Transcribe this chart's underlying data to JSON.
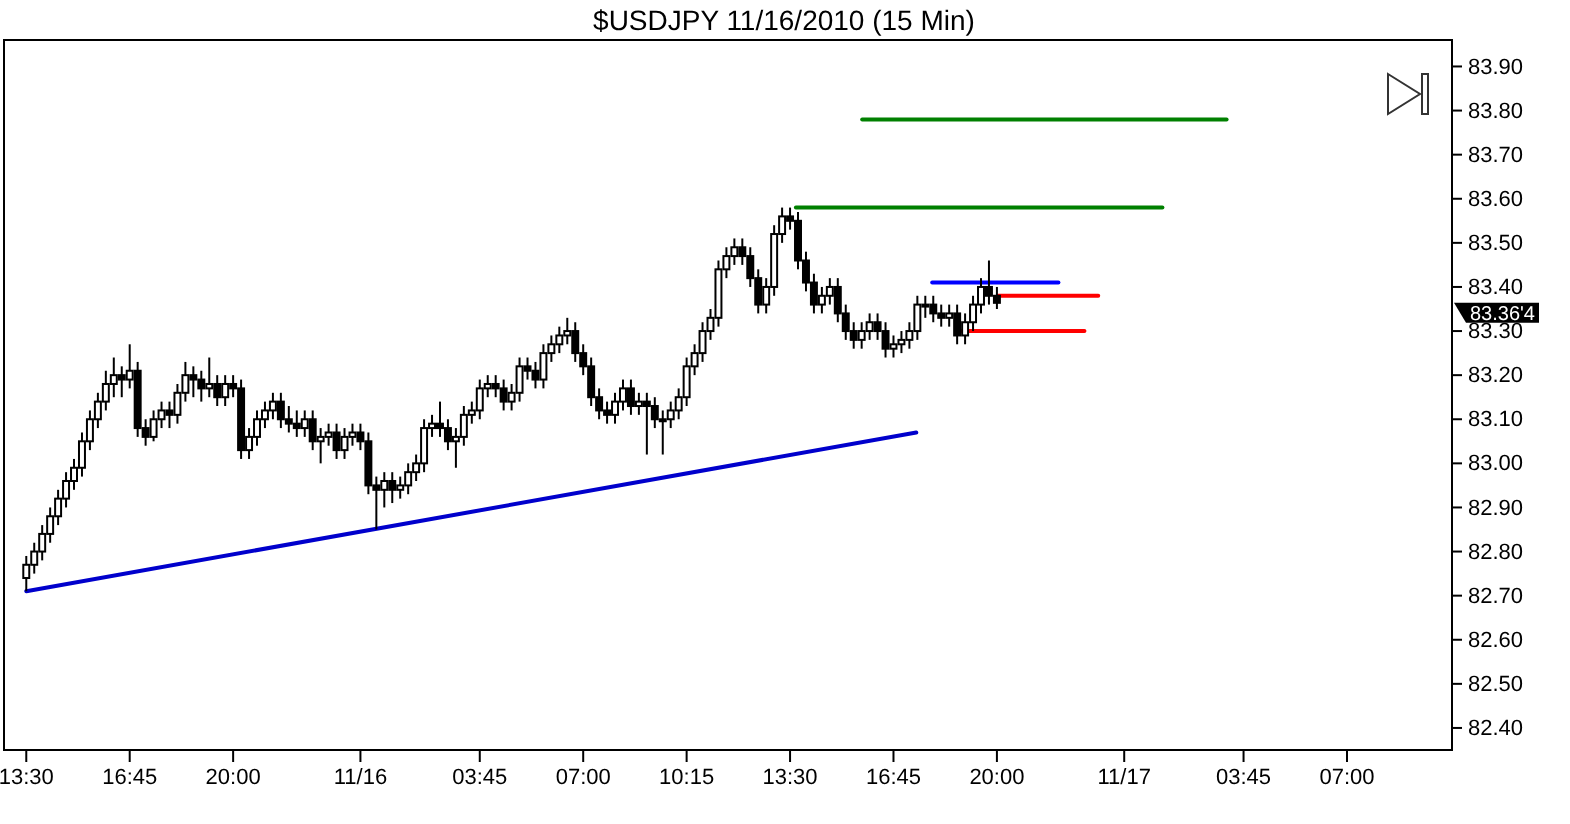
{
  "chart_data": {
    "type": "candlestick",
    "title": "$USDJPY  11/16/2010 (15 Min)",
    "x": [
      "2010-11-15T13:30",
      "2010-11-15T13:45",
      "2010-11-15T14:00",
      "2010-11-15T14:15",
      "2010-11-15T14:30",
      "2010-11-15T14:45",
      "2010-11-15T15:00",
      "2010-11-15T15:15",
      "2010-11-15T15:30",
      "2010-11-15T15:45",
      "2010-11-15T16:00",
      "2010-11-15T16:15",
      "2010-11-15T16:30",
      "2010-11-15T16:45",
      "2010-11-15T17:00",
      "2010-11-15T17:15",
      "2010-11-15T17:30",
      "2010-11-15T17:45",
      "2010-11-15T18:00",
      "2010-11-15T18:15",
      "2010-11-15T18:30",
      "2010-11-15T18:45",
      "2010-11-15T19:00",
      "2010-11-15T19:15",
      "2010-11-15T19:30",
      "2010-11-15T19:45",
      "2010-11-15T20:00",
      "2010-11-15T20:15",
      "2010-11-15T20:30",
      "2010-11-15T20:45",
      "2010-11-15T21:00",
      "2010-11-15T21:15",
      "2010-11-15T21:30",
      "2010-11-15T21:45",
      "2010-11-15T22:00",
      "2010-11-15T22:15",
      "2010-11-15T22:30",
      "2010-11-15T22:45",
      "2010-11-15T23:00",
      "2010-11-15T23:15",
      "2010-11-15T23:30",
      "2010-11-15T23:45",
      "2010-11-16T00:00",
      "2010-11-16T00:15",
      "2010-11-16T00:30",
      "2010-11-16T00:45",
      "2010-11-16T01:00",
      "2010-11-16T01:15",
      "2010-11-16T01:30",
      "2010-11-16T01:45",
      "2010-11-16T02:00",
      "2010-11-16T02:15",
      "2010-11-16T02:30",
      "2010-11-16T02:45",
      "2010-11-16T03:00",
      "2010-11-16T03:15",
      "2010-11-16T03:30",
      "2010-11-16T03:45",
      "2010-11-16T04:00",
      "2010-11-16T04:15",
      "2010-11-16T04:30",
      "2010-11-16T04:45",
      "2010-11-16T05:00",
      "2010-11-16T05:15",
      "2010-11-16T05:30",
      "2010-11-16T05:45",
      "2010-11-16T06:00",
      "2010-11-16T06:15",
      "2010-11-16T06:30",
      "2010-11-16T06:45",
      "2010-11-16T07:00",
      "2010-11-16T07:15",
      "2010-11-16T07:30",
      "2010-11-16T07:45",
      "2010-11-16T08:00",
      "2010-11-16T08:15",
      "2010-11-16T08:30",
      "2010-11-16T08:45",
      "2010-11-16T09:00",
      "2010-11-16T09:15",
      "2010-11-16T09:30",
      "2010-11-16T09:45",
      "2010-11-16T10:00",
      "2010-11-16T10:15",
      "2010-11-16T10:30",
      "2010-11-16T10:45",
      "2010-11-16T11:00",
      "2010-11-16T11:15",
      "2010-11-16T11:30",
      "2010-11-16T11:45",
      "2010-11-16T12:00",
      "2010-11-16T12:15",
      "2010-11-16T12:30",
      "2010-11-16T12:45",
      "2010-11-16T13:00",
      "2010-11-16T13:15",
      "2010-11-16T13:30",
      "2010-11-16T13:45",
      "2010-11-16T14:00",
      "2010-11-16T14:15",
      "2010-11-16T14:30",
      "2010-11-16T14:45",
      "2010-11-16T15:00",
      "2010-11-16T15:15",
      "2010-11-16T15:30",
      "2010-11-16T15:45",
      "2010-11-16T16:00",
      "2010-11-16T16:15",
      "2010-11-16T16:30",
      "2010-11-16T16:45",
      "2010-11-16T17:00",
      "2010-11-16T17:15",
      "2010-11-16T17:30",
      "2010-11-16T17:45",
      "2010-11-16T18:00",
      "2010-11-16T18:15",
      "2010-11-16T18:30",
      "2010-11-16T18:45",
      "2010-11-16T19:00",
      "2010-11-16T19:15",
      "2010-11-16T19:30",
      "2010-11-16T19:45",
      "2010-11-16T20:00"
    ],
    "ohlc": [
      [
        82.74,
        82.79,
        82.71,
        82.77
      ],
      [
        82.77,
        82.82,
        82.75,
        82.8
      ],
      [
        82.8,
        82.86,
        82.78,
        82.84
      ],
      [
        82.84,
        82.9,
        82.82,
        82.88
      ],
      [
        82.88,
        82.94,
        82.86,
        82.92
      ],
      [
        82.92,
        82.98,
        82.9,
        82.96
      ],
      [
        82.96,
        83.01,
        82.94,
        82.99
      ],
      [
        82.99,
        83.07,
        82.97,
        83.05
      ],
      [
        83.05,
        83.12,
        83.03,
        83.1
      ],
      [
        83.1,
        83.16,
        83.08,
        83.14
      ],
      [
        83.14,
        83.21,
        83.12,
        83.18
      ],
      [
        83.18,
        83.24,
        83.15,
        83.2
      ],
      [
        83.2,
        83.22,
        83.15,
        83.19
      ],
      [
        83.19,
        83.27,
        83.17,
        83.21
      ],
      [
        83.21,
        83.23,
        83.06,
        83.08
      ],
      [
        83.08,
        83.1,
        83.04,
        83.06
      ],
      [
        83.06,
        83.12,
        83.05,
        83.1
      ],
      [
        83.1,
        83.14,
        83.08,
        83.12
      ],
      [
        83.12,
        83.14,
        83.08,
        83.11
      ],
      [
        83.11,
        83.18,
        83.09,
        83.16
      ],
      [
        83.16,
        83.23,
        83.14,
        83.2
      ],
      [
        83.2,
        83.22,
        83.15,
        83.19
      ],
      [
        83.19,
        83.21,
        83.14,
        83.17
      ],
      [
        83.17,
        83.24,
        83.15,
        83.18
      ],
      [
        83.18,
        83.2,
        83.13,
        83.15
      ],
      [
        83.15,
        83.2,
        83.13,
        83.18
      ],
      [
        83.18,
        83.2,
        83.15,
        83.17
      ],
      [
        83.17,
        83.19,
        83.01,
        83.03
      ],
      [
        83.03,
        83.08,
        83.01,
        83.06
      ],
      [
        83.06,
        83.12,
        83.04,
        83.1
      ],
      [
        83.1,
        83.14,
        83.08,
        83.12
      ],
      [
        83.12,
        83.16,
        83.1,
        83.14
      ],
      [
        83.14,
        83.16,
        83.08,
        83.1
      ],
      [
        83.1,
        83.13,
        83.07,
        83.09
      ],
      [
        83.09,
        83.12,
        83.06,
        83.08
      ],
      [
        83.08,
        83.12,
        83.06,
        83.1
      ],
      [
        83.1,
        83.12,
        83.03,
        83.05
      ],
      [
        83.05,
        83.08,
        83.0,
        83.06
      ],
      [
        83.06,
        83.09,
        83.04,
        83.07
      ],
      [
        83.07,
        83.09,
        83.01,
        83.03
      ],
      [
        83.03,
        83.08,
        83.01,
        83.06
      ],
      [
        83.06,
        83.09,
        83.04,
        83.07
      ],
      [
        83.07,
        83.09,
        83.03,
        83.05
      ],
      [
        83.05,
        83.07,
        82.93,
        82.95
      ],
      [
        82.95,
        82.97,
        82.85,
        82.94
      ],
      [
        82.94,
        82.98,
        82.9,
        82.96
      ],
      [
        82.96,
        82.98,
        82.91,
        82.94
      ],
      [
        82.94,
        82.97,
        82.92,
        82.95
      ],
      [
        82.95,
        83.0,
        82.93,
        82.98
      ],
      [
        82.98,
        83.02,
        82.96,
        83.0
      ],
      [
        83.0,
        83.1,
        82.98,
        83.08
      ],
      [
        83.08,
        83.11,
        83.06,
        83.09
      ],
      [
        83.09,
        83.14,
        83.06,
        83.08
      ],
      [
        83.08,
        83.1,
        83.03,
        83.05
      ],
      [
        83.05,
        83.08,
        82.99,
        83.06
      ],
      [
        83.06,
        83.13,
        83.04,
        83.11
      ],
      [
        83.11,
        83.14,
        83.09,
        83.12
      ],
      [
        83.12,
        83.19,
        83.1,
        83.17
      ],
      [
        83.17,
        83.2,
        83.15,
        83.18
      ],
      [
        83.18,
        83.2,
        83.15,
        83.17
      ],
      [
        83.17,
        83.19,
        83.12,
        83.14
      ],
      [
        83.14,
        83.18,
        83.12,
        83.16
      ],
      [
        83.16,
        83.24,
        83.14,
        83.22
      ],
      [
        83.22,
        83.24,
        83.19,
        83.21
      ],
      [
        83.21,
        83.23,
        83.17,
        83.19
      ],
      [
        83.19,
        83.27,
        83.17,
        83.25
      ],
      [
        83.25,
        83.29,
        83.23,
        83.27
      ],
      [
        83.27,
        83.31,
        83.25,
        83.29
      ],
      [
        83.29,
        83.33,
        83.27,
        83.3
      ],
      [
        83.3,
        83.32,
        83.23,
        83.25
      ],
      [
        83.25,
        83.27,
        83.2,
        83.22
      ],
      [
        83.22,
        83.24,
        83.13,
        83.15
      ],
      [
        83.15,
        83.17,
        83.1,
        83.12
      ],
      [
        83.12,
        83.14,
        83.09,
        83.11
      ],
      [
        83.11,
        83.16,
        83.09,
        83.14
      ],
      [
        83.14,
        83.19,
        83.12,
        83.17
      ],
      [
        83.17,
        83.19,
        83.11,
        83.13
      ],
      [
        83.13,
        83.16,
        83.11,
        83.14
      ],
      [
        83.14,
        83.16,
        83.02,
        83.13
      ],
      [
        83.13,
        83.15,
        83.08,
        83.1
      ],
      [
        83.1,
        83.12,
        83.02,
        83.1
      ],
      [
        83.1,
        83.14,
        83.08,
        83.12
      ],
      [
        83.12,
        83.17,
        83.1,
        83.15
      ],
      [
        83.15,
        83.24,
        83.13,
        83.22
      ],
      [
        83.22,
        83.27,
        83.2,
        83.25
      ],
      [
        83.25,
        83.32,
        83.23,
        83.3
      ],
      [
        83.3,
        83.35,
        83.28,
        83.33
      ],
      [
        83.33,
        83.46,
        83.31,
        83.44
      ],
      [
        83.44,
        83.49,
        83.42,
        83.47
      ],
      [
        83.47,
        83.51,
        83.45,
        83.49
      ],
      [
        83.49,
        83.51,
        83.45,
        83.47
      ],
      [
        83.47,
        83.49,
        83.4,
        83.42
      ],
      [
        83.42,
        83.44,
        83.34,
        83.36
      ],
      [
        83.36,
        83.42,
        83.34,
        83.4
      ],
      [
        83.4,
        83.54,
        83.38,
        83.52
      ],
      [
        83.52,
        83.58,
        83.5,
        83.56
      ],
      [
        83.56,
        83.58,
        83.53,
        83.55
      ],
      [
        83.55,
        83.57,
        83.44,
        83.46
      ],
      [
        83.46,
        83.48,
        83.39,
        83.41
      ],
      [
        83.41,
        83.43,
        83.34,
        83.36
      ],
      [
        83.36,
        83.4,
        83.34,
        83.38
      ],
      [
        83.38,
        83.42,
        83.36,
        83.4
      ],
      [
        83.4,
        83.42,
        83.32,
        83.34
      ],
      [
        83.34,
        83.36,
        83.28,
        83.3
      ],
      [
        83.3,
        83.32,
        83.26,
        83.28
      ],
      [
        83.28,
        83.32,
        83.26,
        83.3
      ],
      [
        83.3,
        83.34,
        83.28,
        83.32
      ],
      [
        83.32,
        83.34,
        83.28,
        83.3
      ],
      [
        83.3,
        83.32,
        83.24,
        83.26
      ],
      [
        83.26,
        83.29,
        83.24,
        83.27
      ],
      [
        83.27,
        83.3,
        83.25,
        83.28
      ],
      [
        83.28,
        83.32,
        83.26,
        83.3
      ],
      [
        83.3,
        83.38,
        83.28,
        83.36
      ],
      [
        83.36,
        83.38,
        83.33,
        83.36
      ],
      [
        83.36,
        83.38,
        83.32,
        83.34
      ],
      [
        83.34,
        83.36,
        83.31,
        83.33
      ],
      [
        83.33,
        83.36,
        83.31,
        83.34
      ],
      [
        83.34,
        83.36,
        83.27,
        83.29
      ],
      [
        83.29,
        83.34,
        83.27,
        83.32
      ],
      [
        83.32,
        83.38,
        83.3,
        83.36
      ],
      [
        83.36,
        83.42,
        83.34,
        83.4
      ],
      [
        83.4,
        83.46,
        83.36,
        83.38
      ],
      [
        83.38,
        83.4,
        83.35,
        83.364
      ]
    ],
    "series": [
      {
        "type": "line",
        "color": "#0000cc",
        "x": [
          "2010-11-15T13:30",
          "2010-11-16T17:28"
        ],
        "values": [
          82.71,
          83.07
        ]
      },
      {
        "type": "line",
        "color": "#008000",
        "x": [
          "2010-11-16T15:46",
          "2010-11-17T03:13"
        ],
        "values": [
          83.78,
          83.78
        ]
      },
      {
        "type": "line",
        "color": "#008000",
        "x": [
          "2010-11-16T13:41",
          "2010-11-17T01:12"
        ],
        "values": [
          83.58,
          83.58
        ]
      },
      {
        "type": "line",
        "color": "#0000ff",
        "x": [
          "2010-11-16T17:58",
          "2010-11-16T21:56"
        ],
        "values": [
          83.41,
          83.41
        ]
      },
      {
        "type": "line",
        "color": "#ff0000",
        "x": [
          "2010-11-16T20:02",
          "2010-11-16T23:11"
        ],
        "values": [
          83.38,
          83.38
        ]
      },
      {
        "type": "line",
        "color": "#ff0000",
        "x": [
          "2010-11-16T18:54",
          "2010-11-16T22:45"
        ],
        "values": [
          83.3,
          83.3
        ]
      }
    ],
    "xlim": [
      "2010-11-15T12:48",
      "2010-11-17T10:18"
    ],
    "xticks": [
      {
        "value": "2010-11-15T13:30",
        "label": "13:30"
      },
      {
        "value": "2010-11-15T16:45",
        "label": "16:45"
      },
      {
        "value": "2010-11-15T20:00",
        "label": "20:00"
      },
      {
        "value": "2010-11-16T00:00",
        "label": "11/16"
      },
      {
        "value": "2010-11-16T03:45",
        "label": "03:45"
      },
      {
        "value": "2010-11-16T07:00",
        "label": "07:00"
      },
      {
        "value": "2010-11-16T10:15",
        "label": "10:15"
      },
      {
        "value": "2010-11-16T13:30",
        "label": "13:30"
      },
      {
        "value": "2010-11-16T16:45",
        "label": "16:45"
      },
      {
        "value": "2010-11-16T20:00",
        "label": "20:00"
      },
      {
        "value": "2010-11-17T00:00",
        "label": "11/17"
      },
      {
        "value": "2010-11-17T03:45",
        "label": "03:45"
      },
      {
        "value": "2010-11-17T07:00",
        "label": "07:00"
      }
    ],
    "ylim": [
      82.35,
      83.96
    ],
    "yticks": [
      {
        "value": 82.4,
        "label": "82.40"
      },
      {
        "value": 82.5,
        "label": "82.50"
      },
      {
        "value": 82.6,
        "label": "82.60"
      },
      {
        "value": 82.7,
        "label": "82.70"
      },
      {
        "value": 82.8,
        "label": "82.80"
      },
      {
        "value": 82.9,
        "label": "82.90"
      },
      {
        "value": 83.0,
        "label": "83.00"
      },
      {
        "value": 83.1,
        "label": "83.10"
      },
      {
        "value": 83.2,
        "label": "83.20"
      },
      {
        "value": 83.3,
        "label": "83.30"
      },
      {
        "value": 83.4,
        "label": "83.40"
      },
      {
        "value": 83.5,
        "label": "83.50"
      },
      {
        "value": 83.6,
        "label": "83.60"
      },
      {
        "value": 83.7,
        "label": "83.70"
      },
      {
        "value": 83.8,
        "label": "83.80"
      },
      {
        "value": 83.9,
        "label": "83.90"
      }
    ],
    "annotations": [
      "83.36'4"
    ],
    "grid": false
  }
}
